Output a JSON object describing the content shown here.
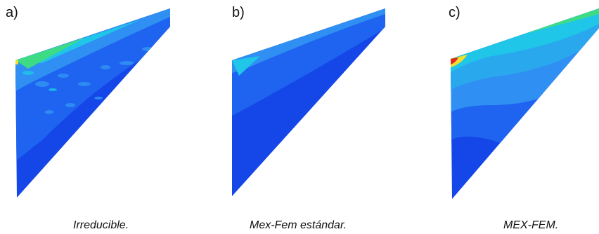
{
  "panels": [
    {
      "letter": "a)",
      "caption": "Irreducible."
    },
    {
      "letter": "b)",
      "caption": "Mex-Fem estándar."
    },
    {
      "letter": "c)",
      "caption": "MEX-FEM."
    }
  ],
  "colors": {
    "deep_blue": "#0a2fd6",
    "blue": "#1446e8",
    "mid_blue": "#1f64f0",
    "light_blue": "#2f8ff2",
    "cyan": "#1fc6e8",
    "green": "#3ddc84",
    "yellow": "#f2e030",
    "red": "#e4281f",
    "navy": "#06149a"
  }
}
